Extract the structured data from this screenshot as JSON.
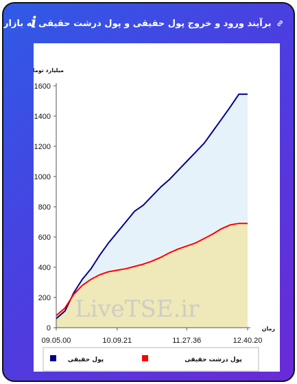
{
  "header": {
    "title": "برآیند ورود و خروج پول حقیقی و پول درشت حقیقی به بازار",
    "link_icon": "link-icon",
    "info_icon": "info-icon",
    "info_glyph": "i"
  },
  "watermark": "LiveTSE.ir",
  "colors": {
    "accent_gradient_start": "#2f5be6",
    "accent_gradient_end": "#6a2ad8",
    "real_money": "#00008b",
    "big_real_money": "#ff0000",
    "real_money_fill": "#e6f2fa",
    "big_real_money_fill": "#efe8b8"
  },
  "chart_data": {
    "type": "area",
    "ylabel": "میلیارد تومان",
    "xlabel": "زمان",
    "ylim": [
      0,
      1600
    ],
    "yticks": [
      0,
      200,
      400,
      600,
      800,
      1000,
      1200,
      1400,
      1600
    ],
    "x_tick_labels": [
      "09.05.00",
      "10.09.21",
      "11.27.36",
      "12.40.20"
    ],
    "grid": false,
    "legend_position": "bottom",
    "x": [
      "09.05.00",
      "09.10",
      "09.20",
      "09.30",
      "09.40",
      "09.50",
      "10.00",
      "10.09.21",
      "10.20",
      "10.30",
      "10.40",
      "10.50",
      "11.00",
      "11.10",
      "11.20",
      "11.27.36",
      "11.40",
      "11.50",
      "12.00",
      "12.10",
      "12.20",
      "12.30",
      "12.40.20"
    ],
    "series": [
      {
        "name": "پول حقیقی",
        "color": "#00008b",
        "values": [
          60,
          110,
          230,
          320,
          390,
          480,
          560,
          630,
          700,
          770,
          810,
          870,
          930,
          980,
          1040,
          1100,
          1160,
          1220,
          1300,
          1380,
          1460,
          1545,
          1545
        ]
      },
      {
        "name": "پول درشت حقیقی",
        "color": "#ff0000",
        "values": [
          80,
          130,
          220,
          280,
          320,
          350,
          370,
          380,
          390,
          405,
          420,
          440,
          465,
          495,
          520,
          540,
          560,
          590,
          620,
          655,
          680,
          690,
          690
        ]
      }
    ]
  }
}
